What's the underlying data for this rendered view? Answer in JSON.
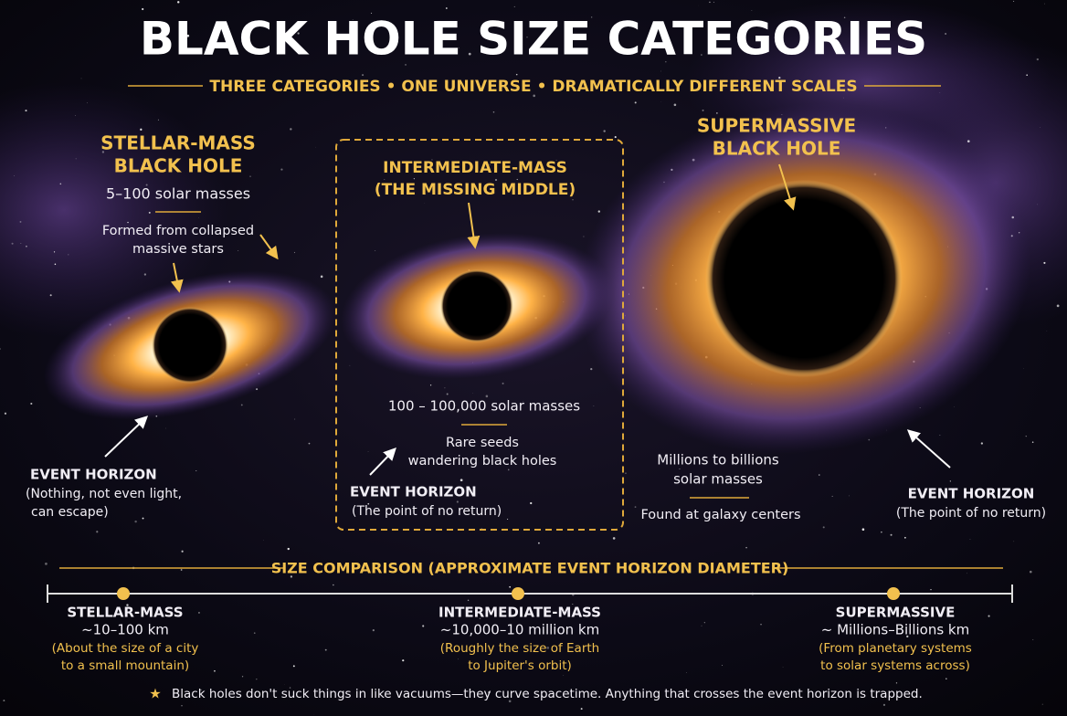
{
  "title": "BLACK HOLE SIZE CATEGORIES",
  "subtitle": "THREE CATEGORIES • ONE UNIVERSE • DRAMATICALLY DIFFERENT SCALES",
  "categories": [
    {
      "name_lines": [
        "STELLAR-MASS",
        "BLACK HOLE"
      ],
      "mass_lines": [
        "5–100 solar masses"
      ],
      "note_lines": [
        "Formed from collapsed",
        "massive stars"
      ],
      "horizon_label": "EVENT HORIZON",
      "horizon_note_lines": [
        "(Nothing, not even light,",
        "can escape)"
      ]
    },
    {
      "name_lines": [
        "INTERMEDIATE-MASS",
        "(THE MISSING MIDDLE)"
      ],
      "mass_lines": [
        "100 – 100,000 solar masses"
      ],
      "note_lines": [
        "Rare seeds",
        "wandering black holes"
      ],
      "horizon_label": "EVENT HORIZON",
      "horizon_note_lines": [
        "(The point of no return)"
      ]
    },
    {
      "name_lines": [
        "SUPERMASSIVE",
        "BLACK HOLE"
      ],
      "mass_lines": [
        "Millions to billions",
        "solar masses"
      ],
      "note_lines": [
        "Found at galaxy centers"
      ],
      "horizon_label": "EVENT HORIZON",
      "horizon_note_lines": [
        "(The point of no return)"
      ]
    }
  ],
  "comparison": {
    "title": "SIZE COMPARISON (APPROXIMATE EVENT HORIZON DIAMETER)",
    "items": [
      {
        "name": "STELLAR-MASS",
        "size": "~10–100 km",
        "note_lines": [
          "(About the size of a city",
          "to a small mountain)"
        ]
      },
      {
        "name": "INTERMEDIATE-MASS",
        "size": "~10,000–10 million km",
        "note_lines": [
          "(Roughly the size of Earth",
          "to Jupiter's orbit)"
        ]
      },
      {
        "name": "SUPERMASSIVE",
        "size": "~ Millions–Billions km",
        "note_lines": [
          "(From planetary systems",
          "to solar systems across)"
        ]
      }
    ]
  },
  "footnote": "Black holes don't suck things in like vacuums—they curve spacetime. Anything that crosses the event horizon is trapped."
}
